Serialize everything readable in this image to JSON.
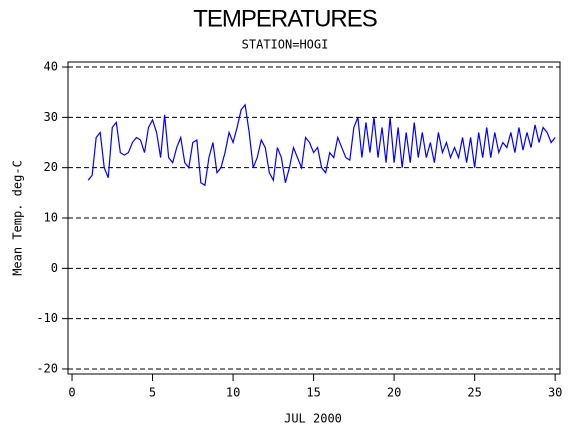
{
  "chart_data": {
    "type": "line",
    "title": "TEMPERATURES",
    "subtitle": "STATION=HOGI",
    "x_label": "JUL 2000",
    "y_label": "Mean Temp. deg-C",
    "x": [
      1,
      1.25,
      1.5,
      1.75,
      2,
      2.25,
      2.5,
      2.75,
      3,
      3.25,
      3.5,
      3.75,
      4,
      4.25,
      4.5,
      4.75,
      5,
      5.25,
      5.5,
      5.75,
      6,
      6.25,
      6.5,
      6.75,
      7,
      7.25,
      7.5,
      7.75,
      8,
      8.25,
      8.5,
      8.75,
      9,
      9.25,
      9.5,
      9.75,
      10,
      10.25,
      10.5,
      10.75,
      11,
      11.25,
      11.5,
      11.75,
      12,
      12.25,
      12.5,
      12.75,
      13,
      13.25,
      13.5,
      13.75,
      14,
      14.25,
      14.5,
      14.75,
      15,
      15.25,
      15.5,
      15.75,
      16,
      16.25,
      16.5,
      16.75,
      17,
      17.25,
      17.5,
      17.75,
      18,
      18.25,
      18.5,
      18.75,
      19,
      19.25,
      19.5,
      19.75,
      20,
      20.25,
      20.5,
      20.75,
      21,
      21.25,
      21.5,
      21.75,
      22,
      22.25,
      22.5,
      22.75,
      23,
      23.25,
      23.5,
      23.75,
      24,
      24.25,
      24.5,
      24.75,
      25,
      25.25,
      25.5,
      25.75,
      26,
      26.25,
      26.5,
      26.75,
      27,
      27.25,
      27.5,
      27.75,
      28,
      28.25,
      28.5,
      28.75,
      29,
      29.25,
      29.5,
      29.75,
      30
    ],
    "series": [
      {
        "name": "Mean Temp",
        "color": "#0000ff",
        "values": [
          17.5,
          18.5,
          26,
          27,
          20,
          18,
          28,
          29,
          23,
          22.5,
          23,
          25,
          26,
          25.5,
          23,
          28,
          29.5,
          27,
          22,
          30.5,
          22,
          21,
          24,
          26,
          21,
          20,
          25,
          25.5,
          17,
          16.5,
          22,
          25,
          19,
          20,
          23,
          27,
          25,
          28,
          31.5,
          32.5,
          27,
          20,
          22,
          25.5,
          24,
          19,
          17.5,
          24,
          22,
          17,
          20,
          24,
          22,
          20,
          26,
          25,
          23,
          24,
          20,
          19,
          23,
          22,
          26,
          24,
          22,
          21.5,
          28,
          30,
          22,
          29,
          23,
          30,
          22,
          28,
          21,
          30,
          21,
          28,
          20,
          27,
          21,
          29,
          22,
          27,
          22,
          25,
          21,
          27,
          23,
          25,
          22,
          24,
          22,
          26,
          21,
          26,
          20,
          27,
          22,
          28,
          22,
          27,
          23,
          25,
          24,
          27,
          23,
          28,
          23.5,
          27,
          24,
          28.5,
          25,
          28,
          27,
          25,
          26
        ]
      }
    ],
    "xlim": [
      -0.25,
      30.3
    ],
    "ylim": [
      -21,
      41
    ],
    "xticks": [
      0,
      5,
      10,
      15,
      20,
      25,
      30
    ],
    "yticks": [
      -20,
      -10,
      0,
      10,
      20,
      30,
      40
    ],
    "grid": true
  }
}
